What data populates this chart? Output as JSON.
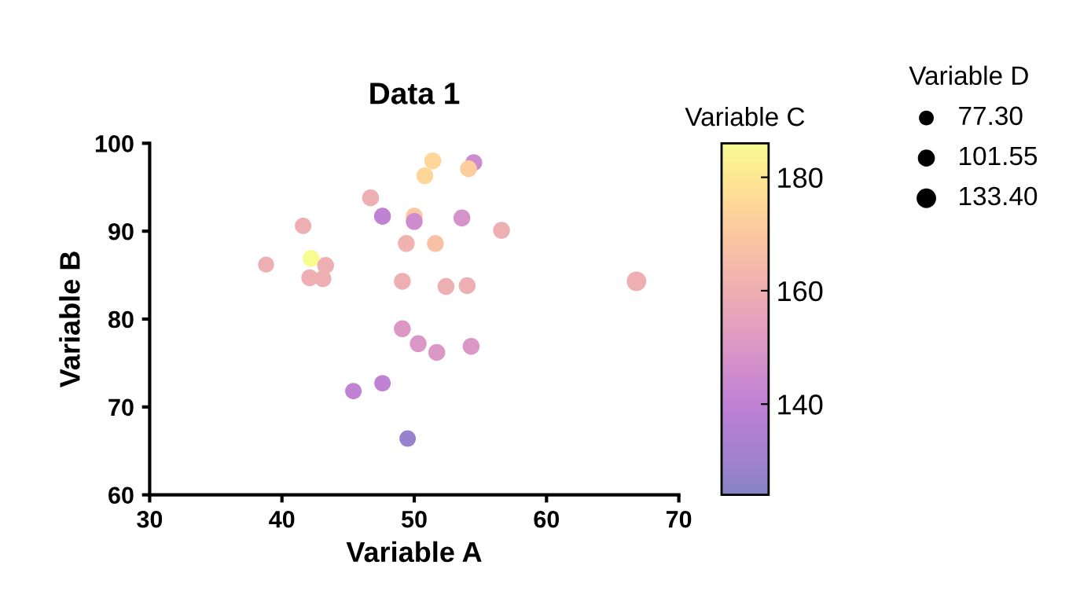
{
  "chart_data": {
    "type": "bubble",
    "title": "Data 1",
    "xlabel": "Variable A",
    "ylabel": "Variable B",
    "clabel": "Variable C",
    "legend_title": "Variable D",
    "x": [
      51.4,
      54.5,
      54.1,
      50.8,
      46.7,
      47.6,
      50.0,
      50.0,
      53.6,
      56.6,
      41.6,
      49.4,
      51.6,
      38.8,
      42.2,
      43.3,
      42.1,
      43.1,
      49.1,
      52.4,
      54.0,
      66.8,
      49.1,
      50.3,
      51.7,
      54.3,
      45.4,
      47.6,
      49.5
    ],
    "values": [
      98.0,
      97.8,
      97.1,
      96.3,
      93.8,
      91.7,
      91.7,
      91.1,
      91.5,
      90.1,
      90.6,
      88.6,
      88.6,
      86.2,
      86.9,
      86.1,
      84.7,
      84.6,
      84.3,
      83.7,
      83.8,
      84.3,
      78.9,
      77.2,
      76.2,
      76.9,
      71.8,
      72.7,
      66.4
    ],
    "cvalues": [
      175,
      145,
      172,
      175,
      160,
      140,
      170,
      145,
      148,
      160,
      160,
      162,
      167,
      160,
      186,
      160,
      160,
      160,
      160,
      160,
      160,
      160,
      150,
      150,
      150,
      150,
      140,
      140,
      128
    ],
    "sizes": [
      100,
      100,
      100,
      100,
      100,
      100,
      100,
      100,
      100,
      100,
      95,
      100,
      100,
      90,
      100,
      100,
      100,
      100,
      100,
      100,
      100,
      133.4,
      100,
      100,
      100,
      100,
      95,
      95,
      95
    ],
    "size_legend": [
      {
        "value": 77.3,
        "label": "77.30"
      },
      {
        "value": 101.55,
        "label": "101.55"
      },
      {
        "value": 133.4,
        "label": "133.40"
      }
    ],
    "xlim": [
      30,
      70
    ],
    "xticks": [
      30,
      40,
      50,
      60,
      70
    ],
    "ylim": [
      60,
      100
    ],
    "yticks": [
      60,
      70,
      80,
      90,
      100
    ],
    "clim": [
      124,
      186
    ],
    "cticks": [
      140,
      160,
      180
    ],
    "grid": false
  }
}
